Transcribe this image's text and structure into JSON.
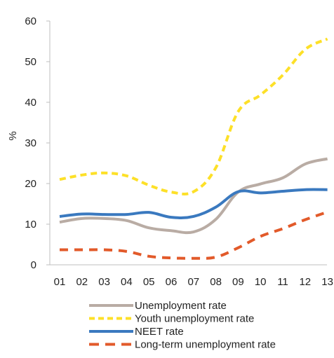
{
  "chart_data": {
    "type": "line",
    "ylabel": "%",
    "ylim": [
      0,
      60
    ],
    "yticks": [
      0,
      10,
      20,
      30,
      40,
      50,
      60
    ],
    "categories": [
      "01",
      "02",
      "03",
      "04",
      "05",
      "06",
      "07",
      "08",
      "09",
      "10",
      "11",
      "12",
      "13"
    ],
    "grid": false,
    "legend_position": "bottom",
    "series": [
      {
        "name": "Unemployment rate",
        "color": "#b9aca4",
        "dash": "solid",
        "values": [
          10.5,
          11.4,
          11.4,
          10.9,
          9.1,
          8.4,
          8.1,
          11.2,
          17.9,
          19.9,
          21.4,
          24.8,
          26.1
        ]
      },
      {
        "name": "Youth unemployment rate",
        "color": "#fde028",
        "dash": "dashed",
        "values": [
          21.0,
          22.1,
          22.6,
          21.9,
          19.6,
          17.9,
          18.0,
          23.9,
          37.7,
          41.8,
          46.7,
          53.0,
          55.6
        ]
      },
      {
        "name": "NEET rate",
        "color": "#3a79bf",
        "dash": "solid",
        "values": [
          11.9,
          12.5,
          12.4,
          12.4,
          12.9,
          11.7,
          11.9,
          14.2,
          18.0,
          17.7,
          18.1,
          18.5,
          18.5
        ]
      },
      {
        "name": "Long-term unemployment rate",
        "color": "#e25a2a",
        "dash": "dashed",
        "values": [
          3.7,
          3.7,
          3.7,
          3.3,
          2.1,
          1.7,
          1.6,
          1.9,
          4.2,
          7.0,
          8.9,
          11.1,
          13.0
        ]
      }
    ]
  }
}
